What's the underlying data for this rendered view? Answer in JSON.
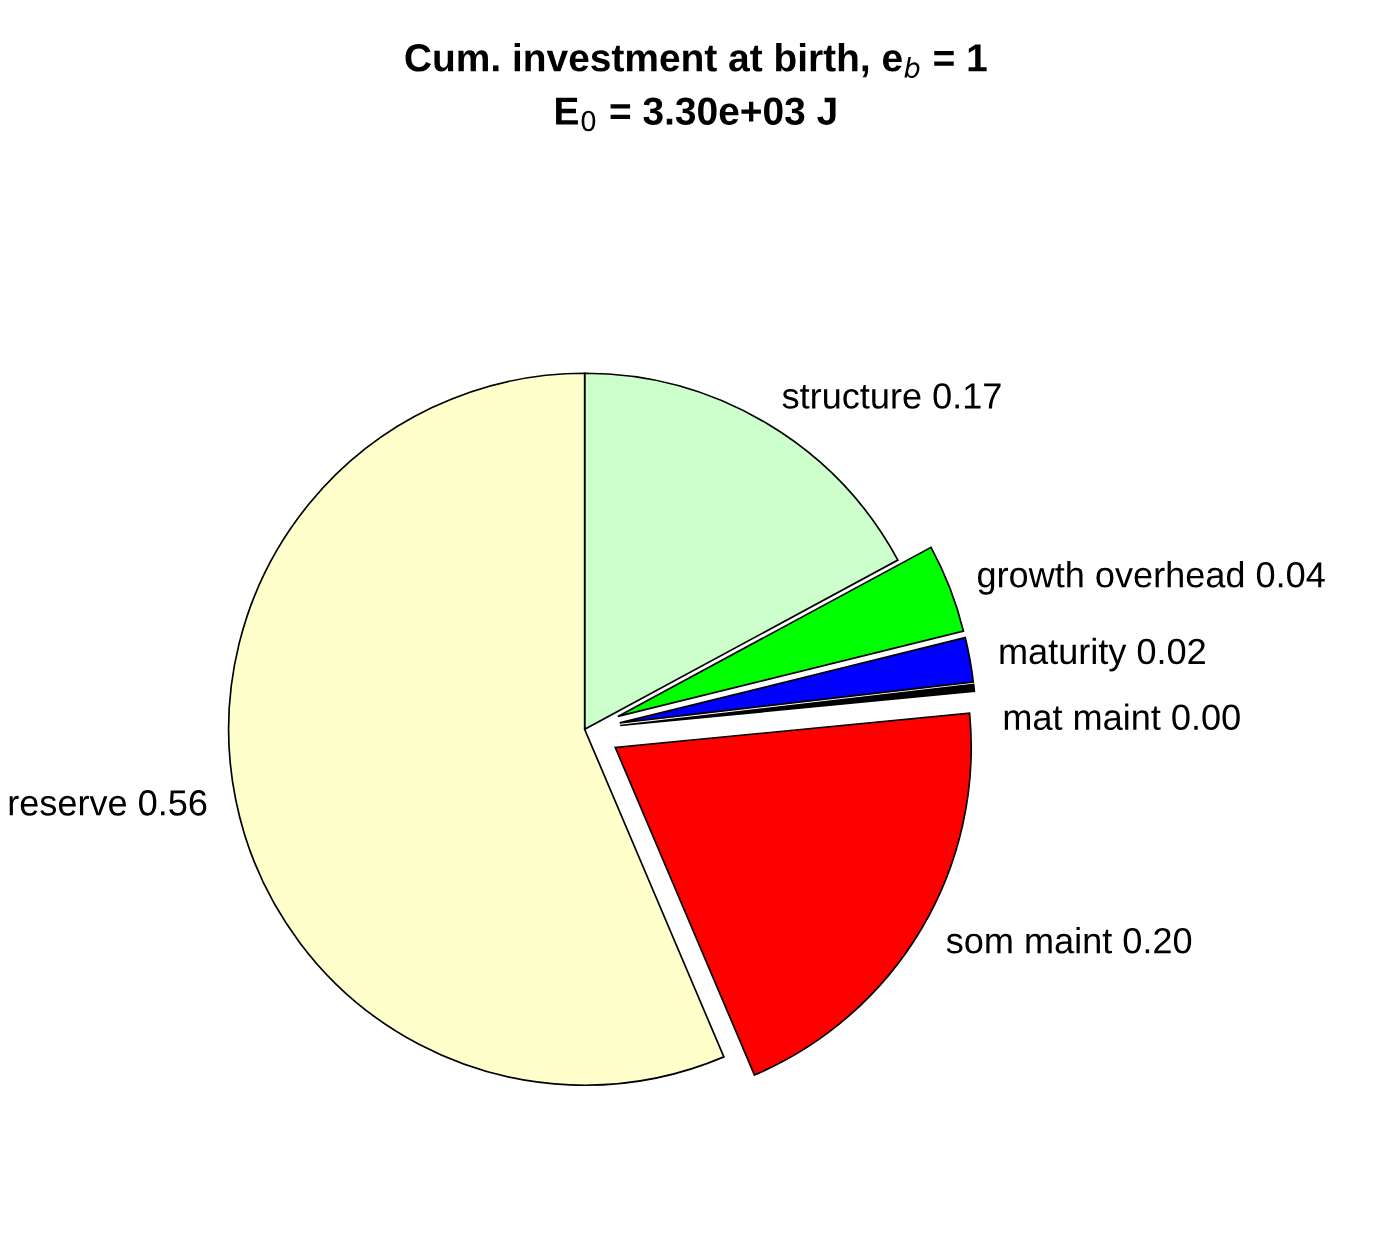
{
  "chart_data": {
    "type": "pie",
    "title": "Cum. investment at birth, e$_{b}$ = 1\nE$_{0}$ = 3.30e+03 J",
    "categories": [
      "structure",
      "growth overhead",
      "maturity",
      "mat maint",
      "som maint",
      "reserve"
    ],
    "values": [
      0.17,
      0.04,
      0.02,
      0.003,
      0.2,
      0.56
    ],
    "value_labels": [
      "0.17",
      "0.04",
      "0.02",
      "0.00",
      "0.20",
      "0.56"
    ],
    "colors": [
      "#ccffcc",
      "#00ff00",
      "#0000ff",
      "#000000",
      "#ff0000",
      "#ffffcc"
    ]
  }
}
